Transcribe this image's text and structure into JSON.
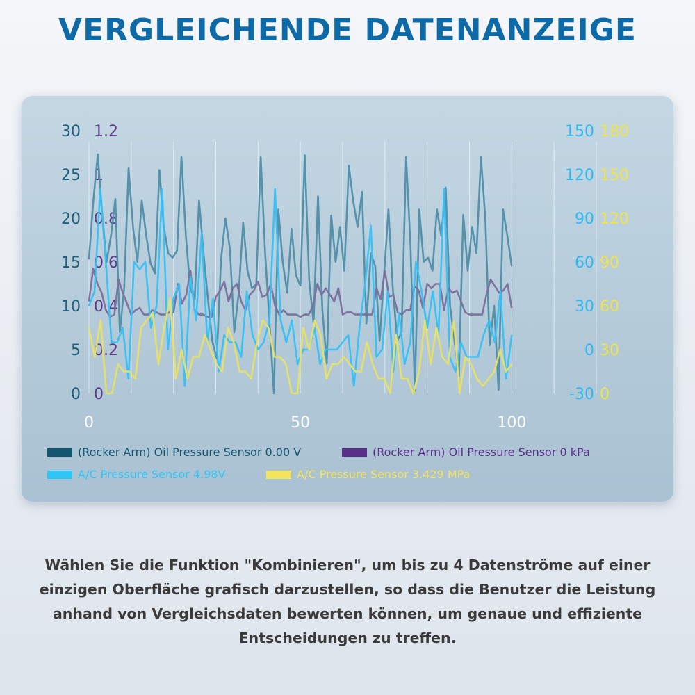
{
  "title": "VERGLEICHENDE DATENANZEIGE",
  "caption": "Wählen Sie die Funktion \"Kombinieren\", um bis zu 4 Datenströme auf einer einzigen Oberfläche grafisch darzustellen, so dass die Benutzer die Leistung anhand von Vergleichsdaten bewerten können, um genaue und effiziente Entscheidungen zu treffen.",
  "chart_data": {
    "type": "line",
    "grid": "vertical",
    "legend_position": "bottom",
    "xlim": [
      0,
      120
    ],
    "x_ticks": [
      0,
      50,
      100
    ],
    "axes": {
      "left_outer": {
        "ticks": [
          "30",
          "25",
          "20",
          "15",
          "10",
          "5",
          "0"
        ],
        "range": [
          0,
          30
        ],
        "color": "#1f5f7c"
      },
      "left_inner": {
        "ticks": [
          "1.2",
          "1",
          "0.8",
          "0.6",
          "0.4",
          "0.2",
          "0"
        ],
        "range": [
          0,
          1.2
        ],
        "color": "#5a3a86"
      },
      "right_inner": {
        "ticks": [
          "150",
          "120",
          "90",
          "60",
          "30",
          "0",
          "-30"
        ],
        "range": [
          -30,
          150
        ],
        "color": "#2db9f2"
      },
      "right_outer": {
        "ticks": [
          "180",
          "150",
          "120",
          "90",
          "60",
          "30",
          "0"
        ],
        "range": [
          0,
          180
        ],
        "color": "#f2e24a"
      }
    },
    "series": [
      {
        "name": "(Rocker Arm) Oil Pressure Sensor 0.00 V",
        "axis": "left_outer",
        "color": "#4f8ea8",
        "legend_color": "#13566f",
        "values": [
          15.3,
          22,
          27.3,
          20.5,
          15,
          18,
          22.2,
          7,
          12,
          25.7,
          19,
          15,
          22,
          18,
          14.8,
          13.7,
          25.5,
          19,
          16,
          15.5,
          16.3,
          27,
          18,
          12,
          10.8,
          22,
          16,
          10.8,
          6,
          4,
          15.3,
          20,
          16.5,
          7,
          11.5,
          19.5,
          14,
          12,
          12.5,
          27,
          16,
          8,
          0,
          21,
          15,
          11.5,
          18.8,
          13.5,
          12.3,
          27.2,
          13,
          8,
          22.5,
          9.5,
          3.4,
          20.3,
          15,
          19,
          14,
          26,
          22,
          19,
          23,
          8,
          16,
          14.5,
          6,
          13.5,
          21,
          12,
          6,
          7,
          27,
          17,
          0.3,
          21,
          15,
          15.5,
          14,
          21,
          18,
          23.5,
          10,
          6,
          2,
          20.4,
          14,
          19,
          16,
          27,
          20,
          5.5,
          10,
          0.4,
          21,
          18,
          14.5
        ]
      },
      {
        "name": "(Rocker Arm) Oil Pressure Sensor 0 kPa",
        "axis": "left_inner",
        "color": "#7a6f9c",
        "legend_color": "#5a2f8a",
        "values": [
          0.42,
          0.57,
          0.5,
          0.46,
          0.38,
          0.35,
          0.36,
          0.52,
          0.46,
          0.41,
          0.36,
          0.38,
          0.39,
          0.36,
          0.36,
          0.38,
          0.37,
          0.36,
          0.36,
          0.37,
          0.37,
          0.5,
          0.41,
          0.45,
          0.56,
          0.38,
          0.36,
          0.36,
          0.35,
          0.35,
          0.44,
          0.47,
          0.51,
          0.42,
          0.48,
          0.5,
          0.42,
          0.38,
          0.45,
          0.47,
          0.51,
          0.44,
          0.45,
          0.5,
          0.4,
          0.36,
          0.38,
          0.36,
          0.36,
          0.36,
          0.35,
          0.36,
          0.36,
          0.4,
          0.5,
          0.45,
          0.48,
          0.45,
          0.42,
          0.48,
          0.36,
          0.37,
          0.37,
          0.36,
          0.36,
          0.36,
          0.36,
          0.36,
          0.48,
          0.43,
          0.56,
          0.44,
          0.45,
          0.37,
          0.36,
          0.38,
          0.38,
          0.49,
          0.47,
          0.39,
          0.5,
          0.48,
          0.5,
          0.5,
          0.38,
          0.48,
          0.46,
          0.47,
          0.42,
          0.37,
          0.36,
          0.36,
          0.36,
          0.36,
          0.45,
          0.52,
          0.49,
          0.46,
          0.47,
          0.5,
          0.39
        ]
      },
      {
        "name": "A/C Pressure Sensor 4.98V",
        "axis": "right_inner",
        "color": "#37c0f5",
        "legend_color": "#2ec6f7",
        "values": [
          30,
          40,
          110,
          60,
          5,
          5,
          15,
          -20,
          60,
          55,
          60,
          15,
          30,
          110,
          0,
          35,
          45,
          -25,
          50,
          20,
          80,
          5,
          35,
          -15,
          10,
          5,
          5,
          -5,
          40,
          10,
          0,
          5,
          20,
          110,
          20,
          5,
          20,
          -10,
          0,
          0,
          15,
          -10,
          0,
          0,
          0,
          5,
          10,
          -25,
          15,
          45,
          85,
          -5,
          0,
          40,
          -15,
          25,
          -10,
          5,
          60,
          40,
          15,
          40,
          10,
          110,
          -5,
          -15,
          5,
          -5,
          -5,
          -5,
          10,
          20,
          5,
          40,
          -20,
          10
        ]
      },
      {
        "name": "A/C Pressure Sensor 3.429 MPa",
        "axis": "right_outer",
        "color": "#e8e266",
        "legend_color": "#f3e45c",
        "values": [
          45,
          25,
          50,
          0,
          0,
          20,
          15,
          15,
          10,
          45,
          50,
          55,
          20,
          45,
          65,
          10,
          30,
          10,
          25,
          25,
          40,
          30,
          20,
          15,
          45,
          35,
          15,
          15,
          10,
          35,
          50,
          45,
          25,
          25,
          20,
          0,
          0,
          45,
          30,
          50,
          40,
          10,
          20,
          20,
          25,
          20,
          15,
          15,
          35,
          20,
          10,
          10,
          0,
          40,
          10,
          10,
          0,
          15,
          50,
          20,
          45,
          25,
          20,
          50,
          0,
          25,
          20,
          10,
          5,
          10,
          15,
          30,
          15,
          20
        ]
      }
    ]
  }
}
